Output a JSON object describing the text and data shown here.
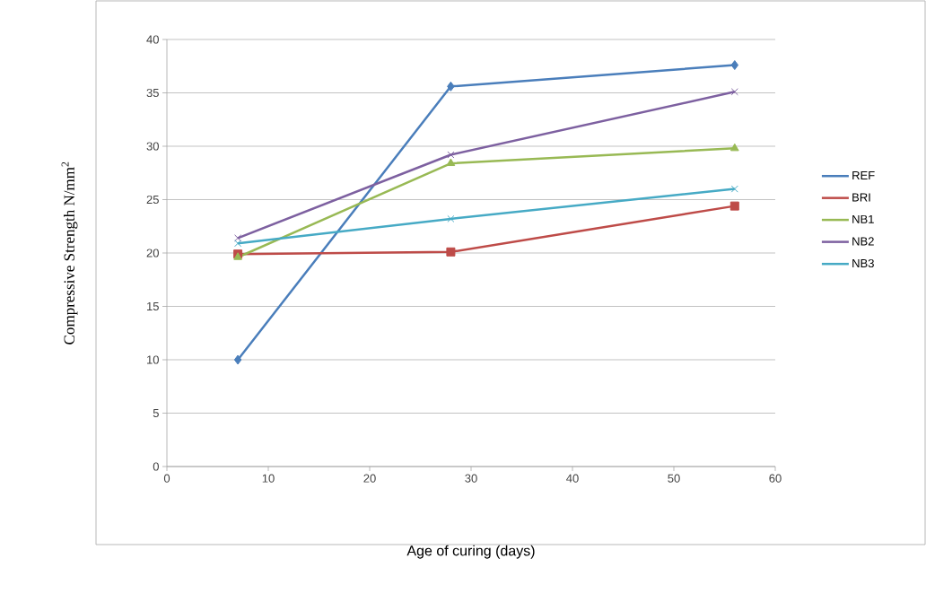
{
  "chart_data": {
    "type": "line",
    "xlabel": "Age of curing (days)",
    "ylabel": "Compressive Strength N/mm$^{2}$",
    "x": [
      7,
      28,
      56
    ],
    "series": [
      {
        "name": "REF",
        "color": "#4a7ebb",
        "marker": "diamond",
        "values": [
          10,
          35.6,
          37.6
        ]
      },
      {
        "name": "BRI",
        "color": "#be4b48",
        "marker": "square",
        "values": [
          19.9,
          20.1,
          24.4
        ]
      },
      {
        "name": "NB1",
        "color": "#98b954",
        "marker": "triangle",
        "values": [
          19.6,
          28.4,
          29.8
        ]
      },
      {
        "name": "NB2",
        "color": "#7d60a0",
        "marker": "cross",
        "values": [
          21.4,
          29.2,
          35.1
        ]
      },
      {
        "name": "NB3",
        "color": "#46aac5",
        "marker": "cross",
        "values": [
          20.9,
          23.2,
          26.0
        ]
      }
    ],
    "xlim": [
      0,
      60
    ],
    "ylim": [
      0,
      40
    ],
    "xticks": [
      0,
      10,
      20,
      30,
      40,
      50,
      60
    ],
    "yticks": [
      0,
      5,
      10,
      15,
      20,
      25,
      30,
      35,
      40
    ],
    "grid": "y",
    "legend": "right"
  }
}
